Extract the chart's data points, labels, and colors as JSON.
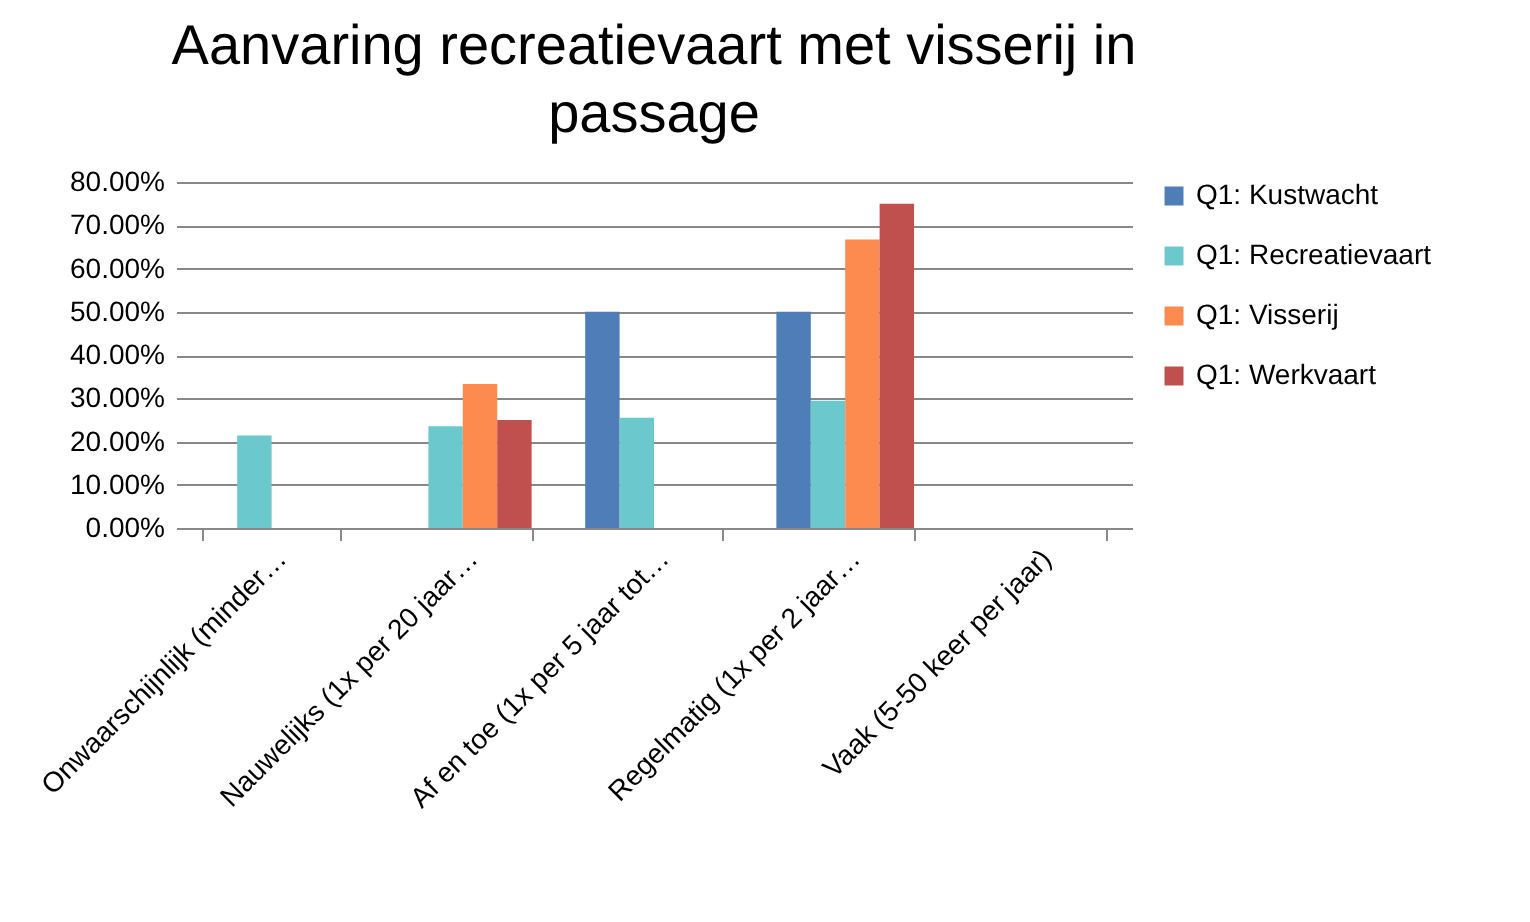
{
  "chart_data": {
    "type": "bar",
    "title": "Aanvaring recreatievaart met visserij in passage",
    "categories": [
      "Onwaarschijnlijk (minder…",
      "Nauwelijks (1x per 20 jaar…",
      "Af en toe (1x per 5 jaar tot…",
      "Regelmatig (1x per 2 jaar…",
      "Vaak (5-50 keer per jaar)"
    ],
    "series": [
      {
        "name": "Q1: Kustwacht",
        "color": "#4f7db8",
        "values": [
          0,
          0,
          50,
          50,
          0
        ]
      },
      {
        "name": "Q1: Recreatievaart",
        "color": "#6bc8cc",
        "values": [
          21.4,
          23.5,
          25.5,
          29.4,
          0
        ]
      },
      {
        "name": "Q1: Visserij",
        "color": "#fd8b4f",
        "values": [
          0,
          33.3,
          0,
          66.7,
          0
        ]
      },
      {
        "name": "Q1: Werkvaart",
        "color": "#c0504d",
        "values": [
          0,
          25,
          0,
          75,
          0
        ]
      }
    ],
    "ylim": [
      0,
      80
    ],
    "yticks": [
      {
        "value": 0,
        "label": "0.00%"
      },
      {
        "value": 10,
        "label": "10.00%"
      },
      {
        "value": 20,
        "label": "20.00%"
      },
      {
        "value": 30,
        "label": "30.00%"
      },
      {
        "value": 40,
        "label": "40.00%"
      },
      {
        "value": 50,
        "label": "50.00%"
      },
      {
        "value": 60,
        "label": "60.00%"
      },
      {
        "value": 70,
        "label": "70.00%"
      },
      {
        "value": 80,
        "label": "80.00%"
      }
    ],
    "grid": "y",
    "legend": "right"
  }
}
